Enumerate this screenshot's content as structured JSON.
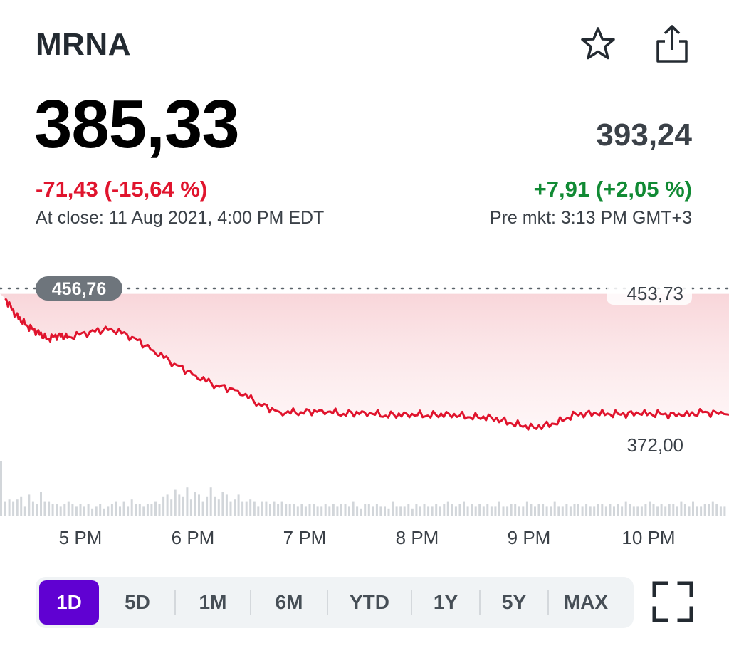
{
  "quote": {
    "ticker": "MRNA",
    "price": "385,33",
    "change": "-71,43 (-15,64 %)",
    "close_time": "At close: 11 Aug 2021, 4:00 PM EDT",
    "pre_price": "393,24",
    "pre_change": "+7,91 (+2,05 %)",
    "pre_time": "Pre mkt: 3:13 PM GMT+3"
  },
  "icons": {
    "favorite": "star-icon",
    "share": "share-icon",
    "fullscreen": "fullscreen-icon"
  },
  "colors": {
    "negative": "#e0142d",
    "positive": "#118a34",
    "accent": "#6001d2"
  },
  "chart_data": {
    "type": "area",
    "x_ticks": [
      "5 PM",
      "6 PM",
      "7 PM",
      "8 PM",
      "9 PM",
      "10 PM"
    ],
    "previous_close": "456,76",
    "high_label": "453,73",
    "low_label": "372,00",
    "ylim": [
      360,
      460
    ],
    "series": [
      {
        "x": [
          16.0,
          16.1,
          16.2,
          16.3,
          16.4,
          16.5,
          16.6,
          16.8,
          17.0,
          17.2,
          17.4,
          17.6,
          17.8,
          18.0,
          18.2,
          18.4,
          18.6,
          18.8,
          19.0,
          19.2,
          19.4,
          19.6,
          19.8,
          20.0,
          20.2,
          20.4,
          20.6,
          20.8,
          21.0,
          21.2,
          21.4,
          21.6,
          21.8,
          22.0,
          22.2,
          22.4,
          22.6,
          22.8
        ],
        "values": [
          454,
          444,
          438,
          434,
          430,
          432,
          431,
          434,
          436,
          431,
          423,
          415,
          408,
          402,
          399,
          391,
          386,
          386,
          387,
          385,
          386,
          384,
          385,
          384,
          385,
          383,
          383,
          379,
          377,
          379,
          385,
          385,
          385,
          385,
          385,
          384,
          386,
          385
        ]
      }
    ],
    "volume": [
      6,
      7,
      6,
      7,
      8,
      4,
      9,
      6,
      5,
      10,
      6,
      6,
      5,
      5,
      4,
      5,
      6,
      5,
      4,
      5,
      4,
      5,
      3,
      4,
      5,
      3,
      4,
      5,
      6,
      4,
      6,
      4,
      7,
      5,
      5,
      4,
      5,
      5,
      6,
      5,
      8,
      9,
      7,
      11,
      9,
      8,
      12,
      7,
      10,
      9,
      6,
      8,
      12,
      8,
      7,
      10,
      9,
      6,
      7,
      9,
      6,
      6,
      7,
      6,
      4,
      6,
      6,
      5,
      6,
      5,
      6,
      5,
      5,
      5,
      4,
      5,
      4,
      5,
      5,
      4,
      4,
      5,
      4,
      5,
      4,
      5,
      5,
      4,
      6,
      4,
      3,
      5,
      5,
      4,
      5,
      4,
      4,
      3,
      6,
      4,
      4,
      4,
      5,
      3,
      5,
      4,
      5,
      4,
      4,
      5,
      4,
      5,
      6,
      5,
      4,
      5,
      6,
      4,
      5,
      4,
      5,
      4,
      5,
      4,
      4,
      6,
      4,
      4,
      5,
      5,
      4,
      4,
      6,
      5,
      4,
      5,
      5,
      4,
      4,
      6,
      4,
      4,
      5,
      4,
      5,
      5,
      4,
      5,
      4,
      4,
      5,
      5,
      4,
      5,
      4,
      5,
      4,
      6,
      5,
      4,
      4,
      4,
      5,
      6,
      5,
      4,
      5,
      4,
      5,
      5,
      4,
      6,
      5,
      4,
      6,
      4,
      4,
      5,
      5,
      6,
      5,
      4,
      4
    ]
  },
  "range_selector": {
    "options": [
      "1D",
      "5D",
      "1M",
      "6M",
      "YTD",
      "1Y",
      "5Y",
      "MAX"
    ],
    "active": "1D"
  }
}
